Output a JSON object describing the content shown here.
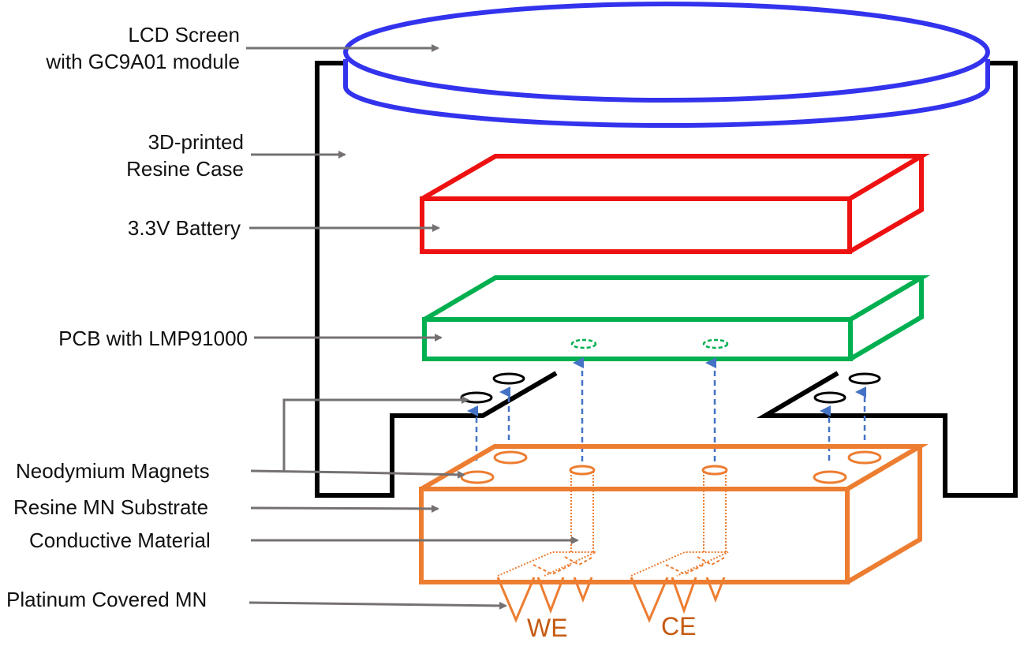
{
  "labels": {
    "lcd_line1": "LCD Screen",
    "lcd_line2": "with GC9A01 module",
    "case_line1": "3D-printed",
    "case_line2": "Resine Case",
    "battery": "3.3V Battery",
    "pcb": "PCB with LMP91000",
    "magnets": "Neodymium Magnets",
    "substrate": "Resine MN Substrate",
    "conductive": "Conductive Material",
    "platinum": "Platinum Covered MN",
    "we": "WE",
    "ce": "CE"
  },
  "colors": {
    "lcd": "#3333ee",
    "battery": "#ee1111",
    "pcb": "#00b050",
    "substrate": "#ed7d31",
    "case": "#000000",
    "arrow": "#767171",
    "connector": "#4472c4",
    "electrode_text": "#c55a11"
  }
}
